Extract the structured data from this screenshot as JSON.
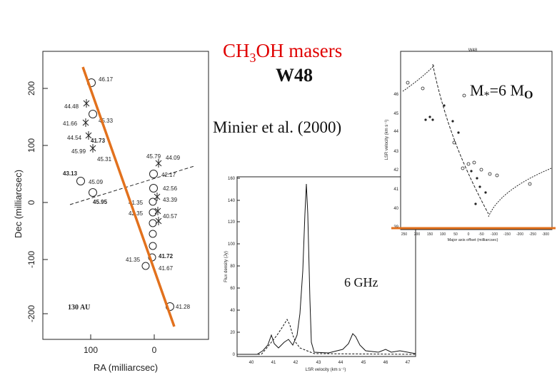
{
  "title": {
    "line1_main": "CH",
    "line1_sub": "3",
    "line1_tail": "OH masers",
    "line2": "W48"
  },
  "citation": "Minier et al. (2000)",
  "mass_label": {
    "prefix": "M",
    "star": "*",
    "suffix": "=6 M",
    "sun": "O"
  },
  "panel_map": {
    "xlabel": "RA (milliarcsec)",
    "ylabel": "Dec (milliarcsec)",
    "x_ticks": [
      "100",
      "0"
    ],
    "y_ticks": [
      "200",
      "100",
      "0",
      "-100",
      "-200"
    ],
    "scale_bar": "130 AU",
    "spot_labels": [
      "46.17",
      "44.48",
      "45.33",
      "41.66",
      "44.54",
      "41.73",
      "45.99",
      "45.31",
      "43.13",
      "45.09",
      "45.95",
      "45.79",
      "44.09",
      "42.17",
      "42.56",
      "43.39",
      "41.35",
      "40.57",
      "42.35",
      "41.35",
      "41.72",
      "41.67",
      "41.28"
    ]
  },
  "panel_spectrum": {
    "xlabel": "LSR velocity (km s⁻¹)",
    "ylabel": "Flux density (Jy)",
    "x_ticks": [
      "40",
      "41",
      "42",
      "43",
      "44",
      "45",
      "46",
      "47"
    ],
    "y_ticks": [
      "0",
      "20",
      "40",
      "60",
      "80",
      "100",
      "120",
      "140",
      "160"
    ],
    "band_label": "6 GHz"
  },
  "panel_pv": {
    "title": "W48",
    "xlabel": "Major axis offset (milliarcsec)",
    "ylabel": "LSR velocity (km s⁻¹)",
    "x_ticks": [
      "250",
      "200",
      "150",
      "100",
      "50",
      "0",
      "-50",
      "-100",
      "-150",
      "-200",
      "-250",
      "-300"
    ],
    "y_ticks": [
      "46",
      "45",
      "44",
      "43",
      "42",
      "41",
      "40",
      "39"
    ]
  },
  "colors": {
    "fit_line": "#e2711d",
    "title_red": "#e00000",
    "ink": "#111111"
  }
}
